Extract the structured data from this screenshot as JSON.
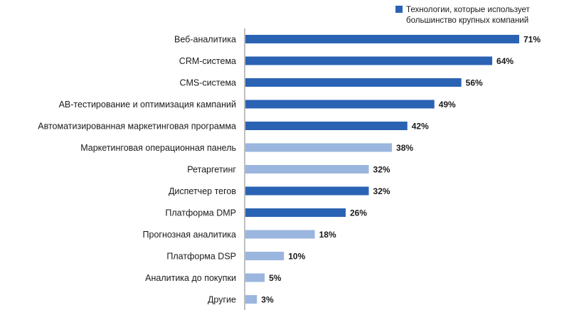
{
  "chart_data": {
    "type": "bar",
    "orientation": "horizontal",
    "categories": [
      "Веб-аналитика",
      "CRM-система",
      "CMS-система",
      "AB-тестирование и оптимизация кампаний",
      "Автоматизированная маркетинговая программа",
      "Маркетинговая операционная панель",
      "Ретаргетинг",
      "Диспетчер тегов",
      "Платформа DMP",
      "Прогнозная аналитика",
      "Платформа DSP",
      "Аналитика до покупки",
      "Другие"
    ],
    "values": [
      71,
      64,
      56,
      49,
      42,
      38,
      32,
      32,
      26,
      18,
      10,
      5,
      3
    ],
    "value_labels": [
      "71%",
      "64%",
      "56%",
      "49%",
      "42%",
      "38%",
      "32%",
      "32%",
      "26%",
      "18%",
      "10%",
      "5%",
      "3%"
    ],
    "highlighted": [
      true,
      true,
      true,
      true,
      true,
      false,
      false,
      true,
      true,
      false,
      false,
      false,
      false
    ],
    "legend": {
      "position": "top-right",
      "lines": [
        "Технологии, которые использует",
        "большинство крупных компаний"
      ]
    },
    "colors": {
      "highlight": "#2b63b4",
      "other": "#9ab6de",
      "axis": "#7f7f7f",
      "text": "#1a1a1a"
    },
    "xlim": [
      0,
      71
    ],
    "title": "",
    "xlabel": "",
    "ylabel": ""
  }
}
